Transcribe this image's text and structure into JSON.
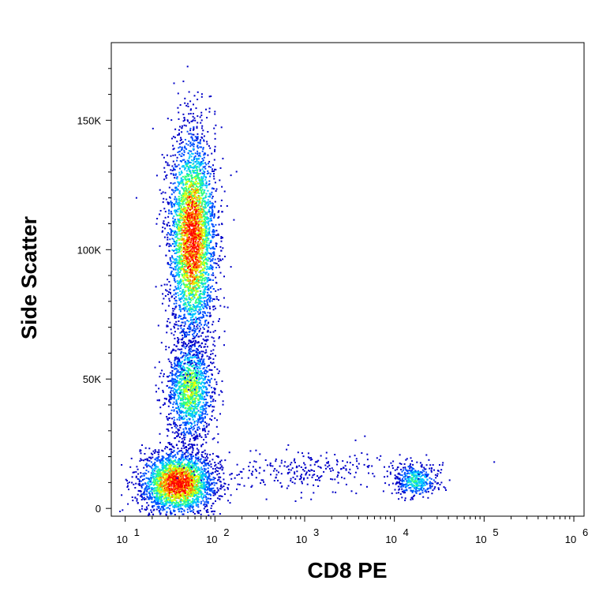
{
  "chart_data": {
    "type": "scatter",
    "style": "density dot plot (flow cytometry)",
    "xlabel": "CD8 PE",
    "ylabel": "Side Scatter",
    "x_scale": "log",
    "xlim": [
      7,
      1300000
    ],
    "ylim": [
      -3000,
      180000
    ],
    "x_ticks": [
      {
        "value": 10,
        "base": "10",
        "exp": "1"
      },
      {
        "value": 100,
        "base": "10",
        "exp": "2"
      },
      {
        "value": 1000,
        "base": "10",
        "exp": "3"
      },
      {
        "value": 10000,
        "base": "10",
        "exp": "4"
      },
      {
        "value": 100000,
        "base": "10",
        "exp": "5"
      },
      {
        "value": 1000000,
        "base": "10",
        "exp": "6"
      }
    ],
    "y_ticks": [
      {
        "value": 0,
        "label": "0"
      },
      {
        "value": 50000,
        "label": "50K"
      },
      {
        "value": 100000,
        "label": "100K"
      },
      {
        "value": 150000,
        "label": "150K"
      }
    ],
    "grid": false,
    "legend": "none",
    "populations": [
      {
        "x_center": 38,
        "y_center": 10000,
        "x_spread_log": 0.2,
        "y_spread": 6000,
        "count": 2600,
        "peak": 1.0
      },
      {
        "x_center": 52,
        "y_center": 46000,
        "x_spread_log": 0.13,
        "y_spread": 10000,
        "count": 1400,
        "peak": 0.6
      },
      {
        "x_center": 55,
        "y_center": 105000,
        "x_spread_log": 0.13,
        "y_spread": 20000,
        "count": 3400,
        "peak": 0.95
      },
      {
        "x_center": 17000,
        "y_center": 11000,
        "x_spread_log": 0.12,
        "y_spread": 3500,
        "count": 420,
        "peak": 0.45
      },
      {
        "x_center": 1000,
        "y_center": 15000,
        "x_spread_log": 0.55,
        "y_spread": 4000,
        "count": 280,
        "peak": 0.1
      }
    ],
    "color_scale": [
      "#0000c8",
      "#0050ff",
      "#00c8ff",
      "#30ff80",
      "#e0ff00",
      "#ff8000",
      "#ff0000"
    ]
  }
}
